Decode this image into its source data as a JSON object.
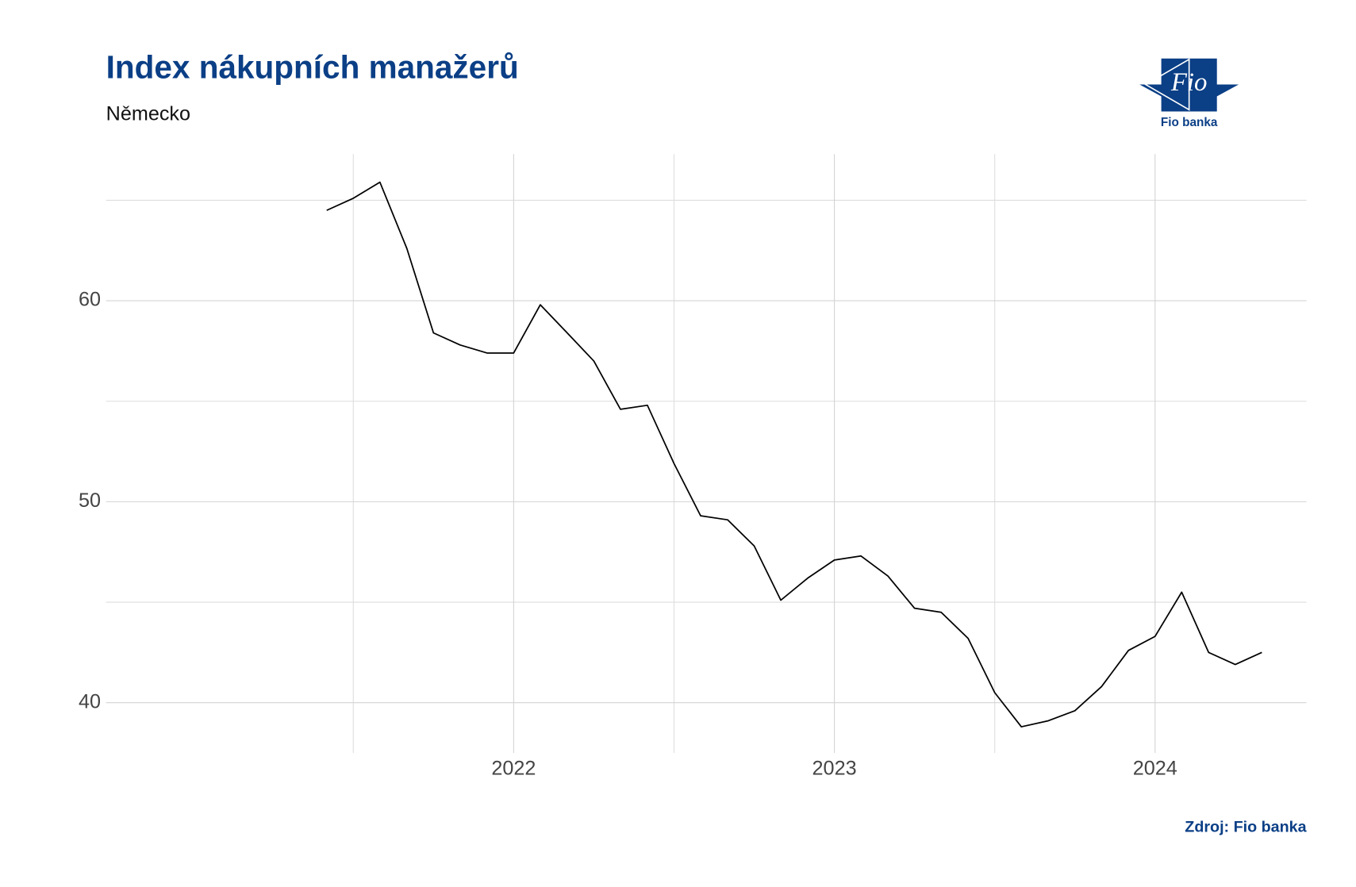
{
  "chart_data": {
    "type": "line",
    "title": "Index nákupních manažerů",
    "subtitle": "Německo",
    "source": "Zdroj: Fio banka",
    "x": [
      2021.417,
      2021.5,
      2021.583,
      2021.667,
      2021.75,
      2021.833,
      2021.917,
      2022.0,
      2022.083,
      2022.167,
      2022.25,
      2022.333,
      2022.417,
      2022.5,
      2022.583,
      2022.667,
      2022.75,
      2022.833,
      2022.917,
      2023.0,
      2023.083,
      2023.167,
      2023.25,
      2023.333,
      2023.417,
      2023.5,
      2023.583,
      2023.667,
      2023.75,
      2023.833,
      2023.917,
      2024.0,
      2024.083,
      2024.167,
      2024.25,
      2024.333
    ],
    "series": [
      {
        "color": "#000000",
        "values": [
          64.5,
          65.1,
          65.9,
          62.6,
          58.4,
          57.8,
          57.4,
          57.4,
          59.8,
          58.4,
          57.0,
          54.6,
          54.8,
          51.9,
          49.3,
          49.1,
          47.8,
          45.1,
          46.2,
          47.1,
          47.3,
          46.3,
          44.7,
          44.5,
          43.2,
          40.5,
          38.8,
          39.1,
          39.6,
          40.8,
          42.6,
          43.3,
          45.5,
          42.5,
          41.9,
          42.5
        ]
      }
    ],
    "xlim": [
      2020.729,
      2024.472
    ],
    "xticks": [
      2022,
      2023,
      2024
    ],
    "ylim": [
      37.5,
      67.3
    ],
    "yticks": [
      40,
      50,
      60
    ],
    "grid": true
  },
  "logo": {
    "mark": "Fio",
    "name": "Fio banka"
  }
}
